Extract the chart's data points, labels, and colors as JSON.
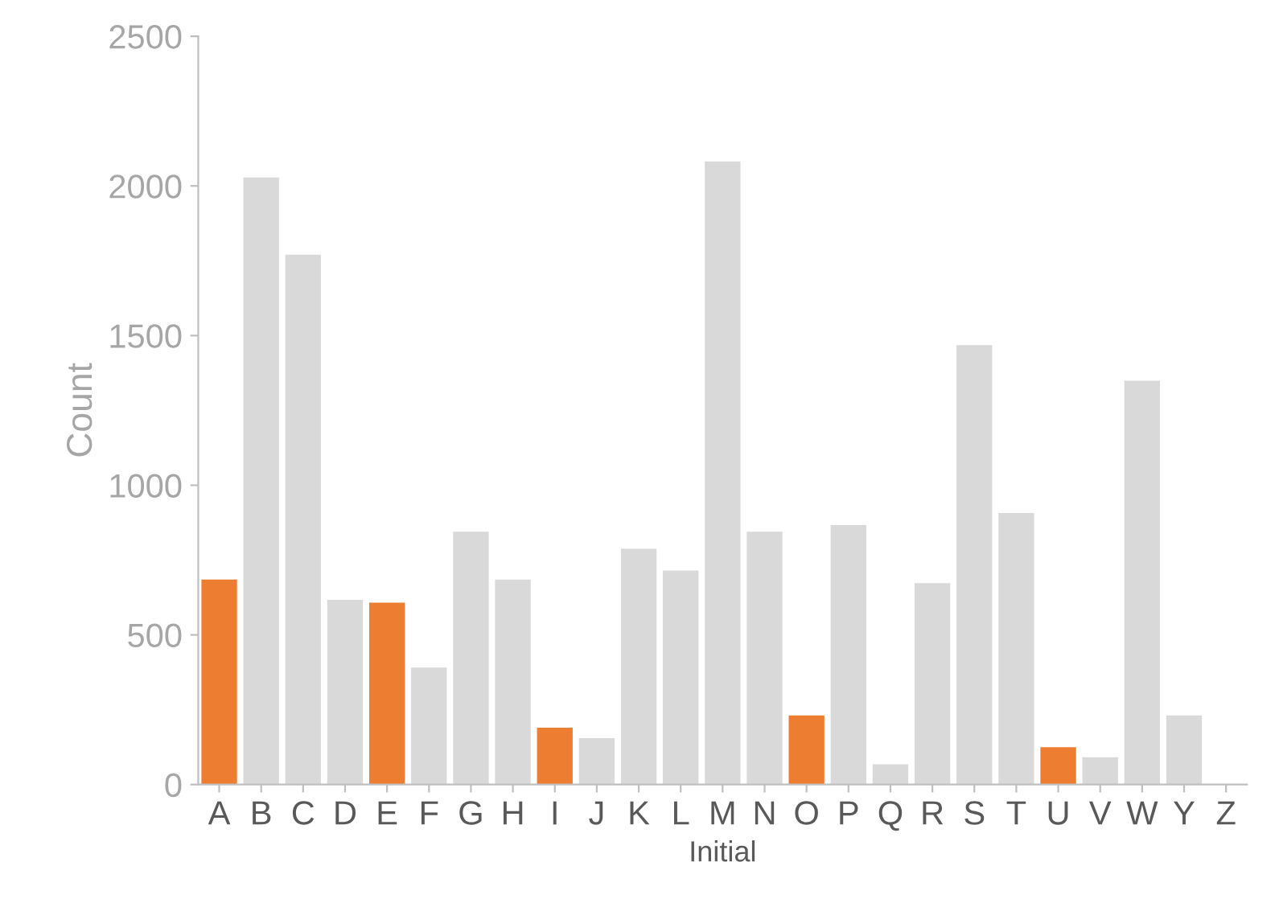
{
  "chart_data": {
    "type": "bar",
    "xlabel": "Initial",
    "ylabel": "Count",
    "categories": [
      "A",
      "B",
      "C",
      "D",
      "E",
      "F",
      "G",
      "H",
      "I",
      "J",
      "K",
      "L",
      "M",
      "N",
      "O",
      "P",
      "Q",
      "R",
      "S",
      "T",
      "U",
      "V",
      "W",
      "Y",
      "Z"
    ],
    "values": [
      685,
      2028,
      1770,
      617,
      608,
      391,
      845,
      685,
      190,
      155,
      788,
      715,
      2082,
      845,
      231,
      867,
      68,
      673,
      1468,
      907,
      125,
      91,
      1349,
      231,
      0
    ],
    "colors": [
      "#ed7d31",
      "#d9d9d9",
      "#d9d9d9",
      "#d9d9d9",
      "#ed7d31",
      "#d9d9d9",
      "#d9d9d9",
      "#d9d9d9",
      "#ed7d31",
      "#d9d9d9",
      "#d9d9d9",
      "#d9d9d9",
      "#d9d9d9",
      "#d9d9d9",
      "#ed7d31",
      "#d9d9d9",
      "#d9d9d9",
      "#d9d9d9",
      "#d9d9d9",
      "#d9d9d9",
      "#ed7d31",
      "#d9d9d9",
      "#d9d9d9",
      "#d9d9d9",
      "#d9d9d9"
    ],
    "ylim": [
      0,
      2500
    ],
    "yticks": [
      0,
      500,
      1000,
      1500,
      2000,
      2500
    ],
    "grid": false,
    "legend": false
  }
}
